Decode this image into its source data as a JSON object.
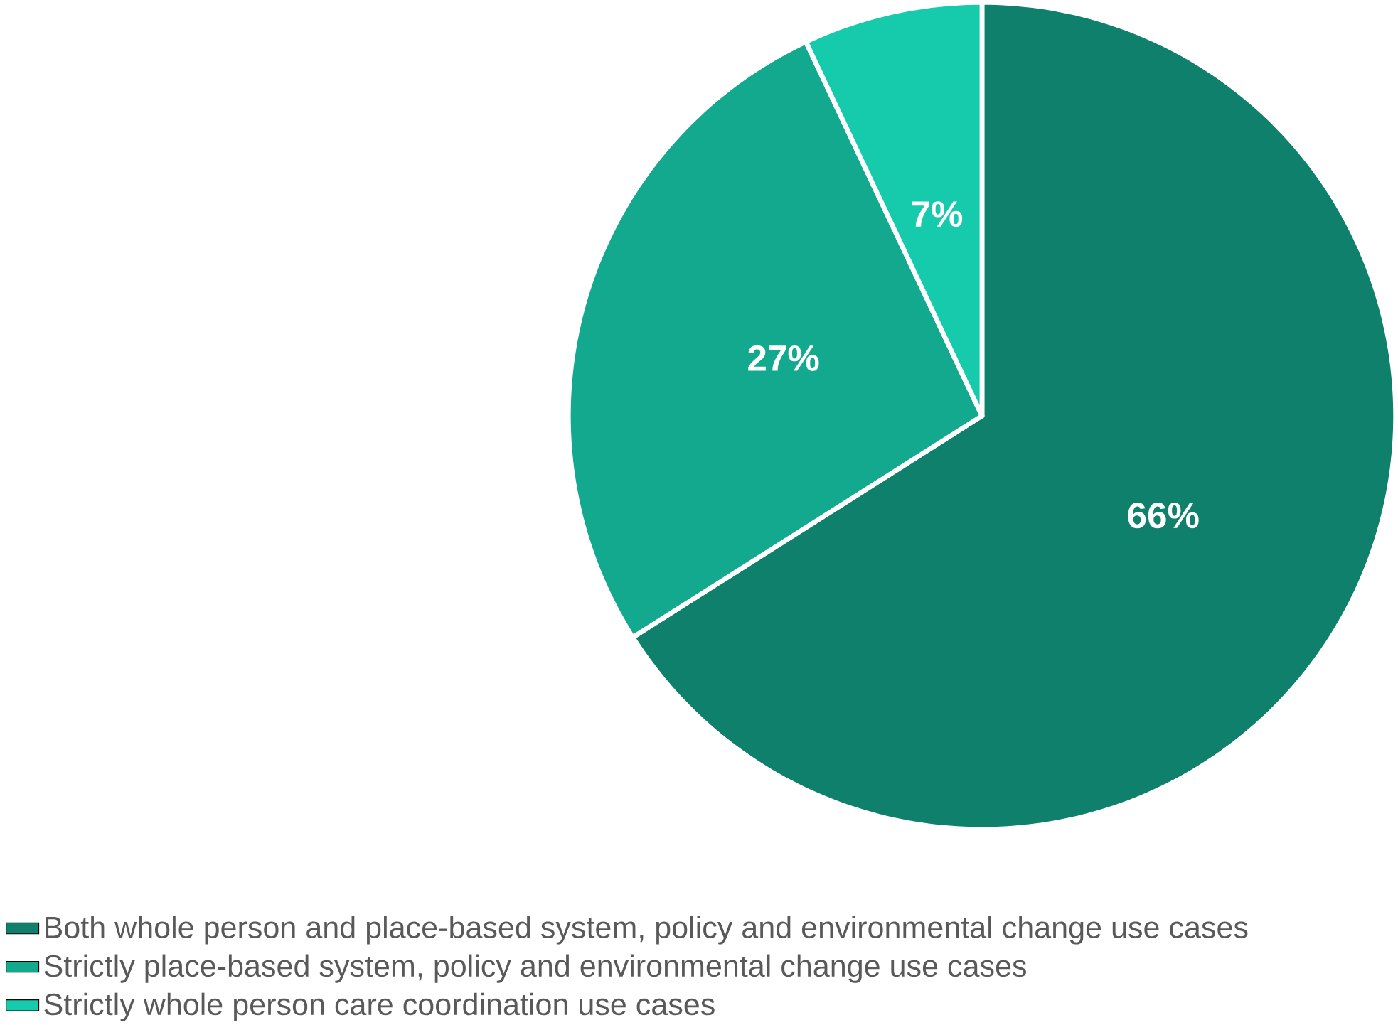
{
  "chart_data": {
    "type": "pie",
    "categories": [
      "Both whole person and place-based system, policy and environmental change use cases",
      "Strictly place-based system, policy and environmental change use cases",
      "Strictly whole person care coordination use cases"
    ],
    "values": [
      66,
      27,
      7
    ],
    "colors": [
      "#0f806c",
      "#13a98f",
      "#15cbac"
    ],
    "value_labels": [
      "66%",
      "27%",
      "7%"
    ],
    "legend": "bottom left"
  }
}
